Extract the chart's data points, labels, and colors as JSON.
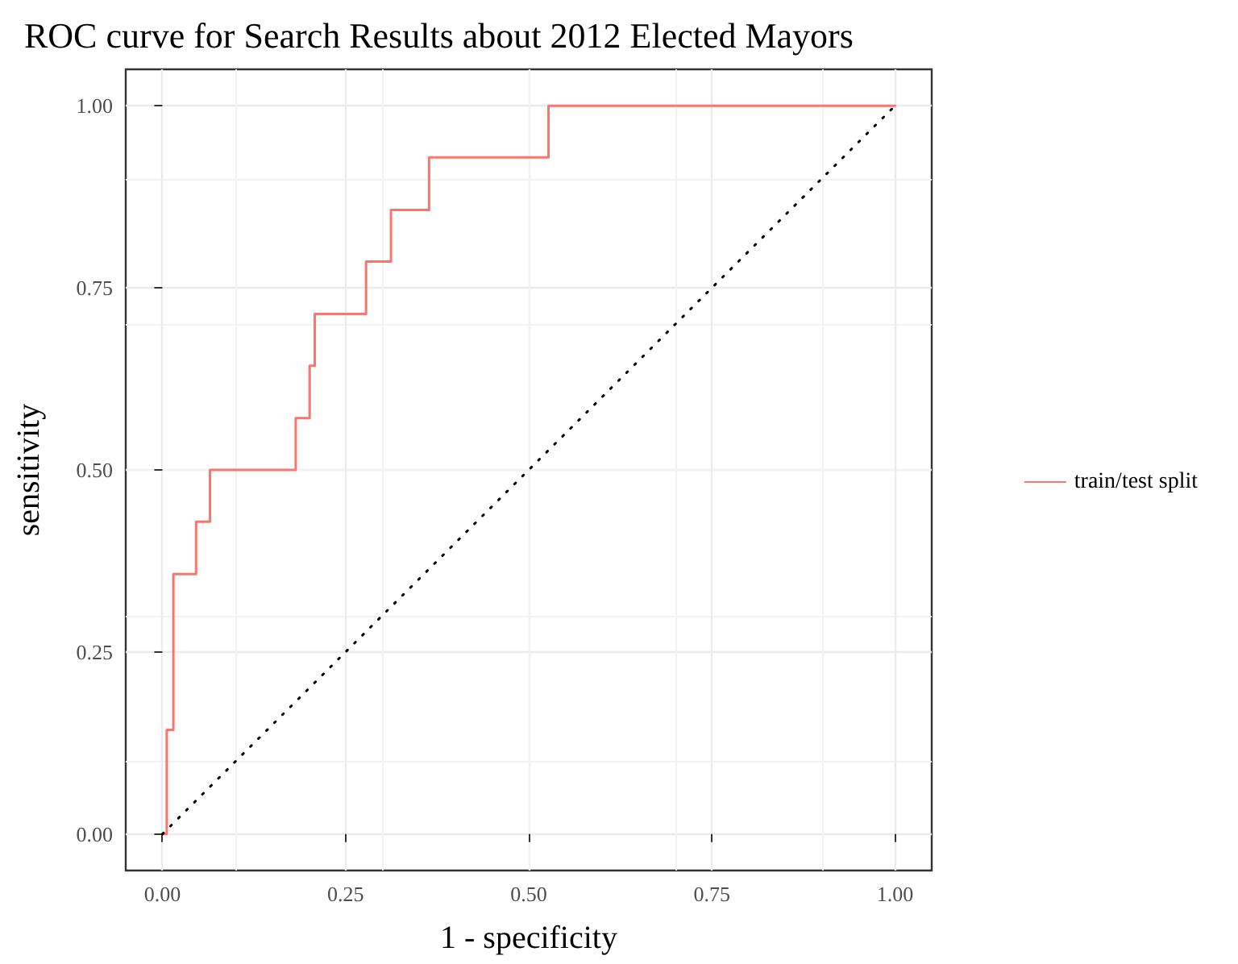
{
  "chart_data": {
    "type": "step",
    "title": "ROC curve for Search Results about 2012 Elected Mayors",
    "xlabel": "1 - specificity",
    "ylabel": "sensitivity",
    "series": [
      {
        "name": "train/test split",
        "color": "#f8766d",
        "x": [
          0,
          0.006,
          0.015,
          0.046,
          0.065,
          0.182,
          0.201,
          0.208,
          0.278,
          0.312,
          0.364,
          0.527,
          1.0
        ],
        "values": [
          0,
          0.143,
          0.357,
          0.429,
          0.5,
          0.571,
          0.643,
          0.714,
          0.786,
          0.857,
          0.929,
          1.0,
          1.0
        ]
      },
      {
        "type": "line",
        "color": "#000000",
        "line_style": "dotted",
        "x": [
          0,
          1
        ],
        "values": [
          0,
          1
        ]
      }
    ],
    "xlim": [
      -0.05,
      1.05
    ],
    "ylim": [
      -0.05,
      1.05
    ],
    "xticks": [
      {
        "value": 0,
        "label": "0.00"
      },
      {
        "value": 0.25,
        "label": "0.25"
      },
      {
        "value": 0.5,
        "label": "0.50"
      },
      {
        "value": 0.75,
        "label": "0.75"
      },
      {
        "value": 1,
        "label": "1.00"
      }
    ],
    "yticks": [
      {
        "value": 0,
        "label": "0.00"
      },
      {
        "value": 0.25,
        "label": "0.25"
      },
      {
        "value": 0.5,
        "label": "0.50"
      },
      {
        "value": 0.75,
        "label": "0.75"
      },
      {
        "value": 1,
        "label": "1.00"
      }
    ],
    "grid": true,
    "legend": "right"
  }
}
